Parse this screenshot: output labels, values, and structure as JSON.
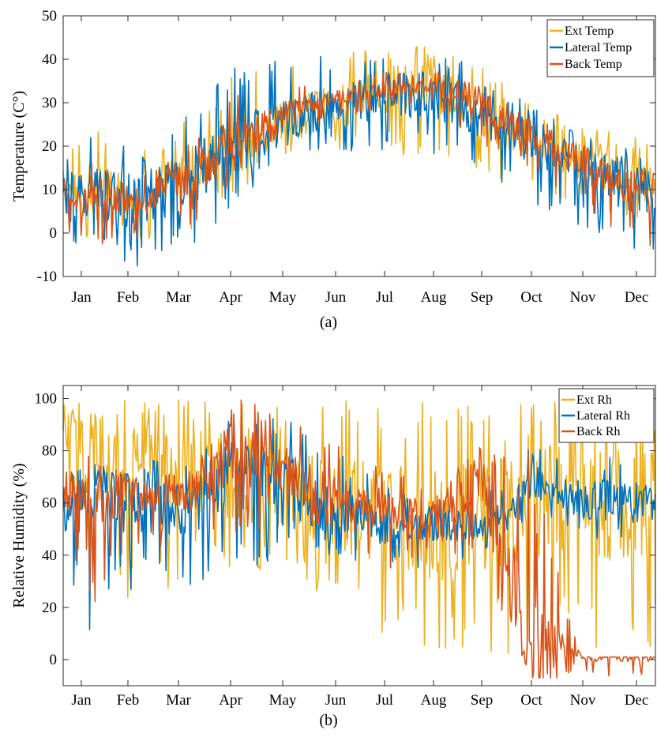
{
  "figure": {
    "captions": [
      "(a)",
      "(b)"
    ],
    "months": [
      "Jan",
      "Feb",
      "Mar",
      "Apr",
      "May",
      "Jun",
      "Jul",
      "Aug",
      "Sep",
      "Oct",
      "Nov",
      "Dec"
    ]
  },
  "chart_data": [
    {
      "type": "line",
      "panel": "a",
      "title": "",
      "xlabel": "",
      "ylabel": "Temperature (C°)",
      "ylim": [
        -10,
        50
      ],
      "yticks": [
        -10,
        0,
        10,
        20,
        30,
        40,
        50
      ],
      "x_categories": [
        "Jan",
        "Feb",
        "Mar",
        "Apr",
        "May",
        "Jun",
        "Jul",
        "Aug",
        "Sep",
        "Oct",
        "Nov",
        "Dec"
      ],
      "grid": false,
      "legend_position": "top-right",
      "series": [
        {
          "name": "Ext Temp",
          "color": "#EDB120",
          "monthly_mean": [
            11,
            8,
            13,
            20,
            25,
            29,
            33,
            33,
            27,
            21,
            16,
            12
          ],
          "monthly_min": [
            2,
            -2,
            0,
            10,
            15,
            18,
            18,
            18,
            13,
            10,
            5,
            2
          ],
          "monthly_max": [
            25,
            20,
            28,
            38,
            40,
            41,
            44,
            43,
            38,
            30,
            25,
            23
          ]
        },
        {
          "name": "Lateral Temp",
          "color": "#0072BD",
          "monthly_mean": [
            10,
            7,
            12,
            20,
            26,
            29,
            32,
            32,
            27,
            21,
            15,
            10
          ],
          "monthly_min": [
            -3,
            -8,
            -4,
            5,
            19,
            18,
            18,
            18,
            15,
            5,
            1,
            -4
          ],
          "monthly_max": [
            24,
            19,
            29,
            39,
            40,
            41,
            42,
            42,
            38,
            29,
            24,
            20
          ]
        },
        {
          "name": "Back Temp",
          "color": "#D95319",
          "monthly_mean": [
            10,
            7,
            12,
            21,
            28,
            31,
            33,
            34,
            29,
            22,
            16,
            10
          ],
          "monthly_min": [
            -3,
            -3,
            0,
            12,
            24,
            27,
            28,
            29,
            20,
            14,
            6,
            -4
          ],
          "monthly_max": [
            17,
            12,
            20,
            32,
            34,
            35,
            37,
            38,
            34,
            27,
            21,
            15
          ]
        }
      ]
    },
    {
      "type": "line",
      "panel": "b",
      "title": "",
      "xlabel": "",
      "ylabel": "Relative Humidity (%)",
      "ylim": [
        -10,
        105
      ],
      "yticks": [
        0,
        20,
        40,
        60,
        80,
        100
      ],
      "x_categories": [
        "Jan",
        "Feb",
        "Mar",
        "Apr",
        "May",
        "Jun",
        "Jul",
        "Aug",
        "Sep",
        "Oct",
        "Nov",
        "Dec"
      ],
      "grid": false,
      "legend_position": "top-right",
      "series": [
        {
          "name": "Ext Rh",
          "color": "#EDB120",
          "monthly_mean": [
            80,
            75,
            72,
            70,
            65,
            60,
            55,
            50,
            55,
            60,
            60,
            60
          ],
          "monthly_min": [
            21,
            21,
            30,
            25,
            30,
            20,
            10,
            3,
            1,
            1,
            1,
            1
          ],
          "monthly_max": [
            100,
            100,
            100,
            100,
            100,
            100,
            100,
            100,
            100,
            100,
            100,
            100
          ]
        },
        {
          "name": "Lateral Rh",
          "color": "#0072BD",
          "monthly_mean": [
            62,
            60,
            58,
            70,
            68,
            55,
            52,
            52,
            50,
            68,
            62,
            60
          ],
          "monthly_min": [
            10,
            27,
            28,
            30,
            42,
            40,
            32,
            33,
            38,
            55,
            45,
            45
          ],
          "monthly_max": [
            75,
            75,
            80,
            95,
            96,
            82,
            68,
            62,
            62,
            82,
            80,
            79
          ]
        },
        {
          "name": "Back Rh",
          "color": "#D95319",
          "monthly_mean": [
            66,
            63,
            62,
            80,
            72,
            62,
            58,
            56,
            68,
            1,
            1,
            1
          ],
          "monthly_min": [
            10,
            42,
            45,
            45,
            55,
            48,
            33,
            42,
            35,
            -7,
            -7,
            -7
          ],
          "monthly_max": [
            78,
            70,
            72,
            100,
            97,
            85,
            72,
            68,
            88,
            85,
            1,
            1
          ]
        }
      ]
    }
  ]
}
